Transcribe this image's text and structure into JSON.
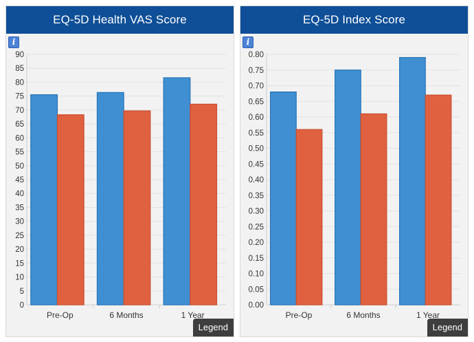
{
  "panels": [
    {
      "title": "EQ-5D Health VAS Score",
      "info_icon": "info-icon",
      "legend_label": "Legend"
    },
    {
      "title": "EQ-5D Index Score",
      "info_icon": "info-icon",
      "legend_label": "Legend"
    }
  ],
  "colors": {
    "header": "#0f4f97",
    "series_blue": "#3f8fd2",
    "series_blue_stroke": "#2574b8",
    "series_orange": "#e0613f",
    "series_orange_stroke": "#c84f2f"
  },
  "chart_data": [
    {
      "type": "bar",
      "title": "EQ-5D Health VAS Score",
      "categories": [
        "Pre-Op",
        "6 Months",
        "1 Year"
      ],
      "series": [
        {
          "values": [
            75.5,
            76.3,
            81.6
          ]
        },
        {
          "values": [
            68.3,
            69.7,
            72.1
          ]
        }
      ],
      "ylim": [
        0,
        90
      ],
      "yticks": [
        "0",
        "5",
        "10",
        "15",
        "20",
        "25",
        "30",
        "35",
        "40",
        "45",
        "50",
        "55",
        "60",
        "65",
        "70",
        "75",
        "80",
        "85",
        "90"
      ],
      "grid": true
    },
    {
      "type": "bar",
      "title": "EQ-5D Index Score",
      "categories": [
        "Pre-Op",
        "6 Months",
        "1 Year"
      ],
      "series": [
        {
          "values": [
            0.68,
            0.75,
            0.79
          ]
        },
        {
          "values": [
            0.56,
            0.61,
            0.67
          ]
        }
      ],
      "ylim": [
        0,
        0.8
      ],
      "yticks": [
        "0.00",
        "0.05",
        "0.10",
        "0.15",
        "0.20",
        "0.25",
        "0.30",
        "0.35",
        "0.40",
        "0.45",
        "0.50",
        "0.55",
        "0.60",
        "0.65",
        "0.70",
        "0.75",
        "0.80"
      ],
      "grid": true
    }
  ]
}
